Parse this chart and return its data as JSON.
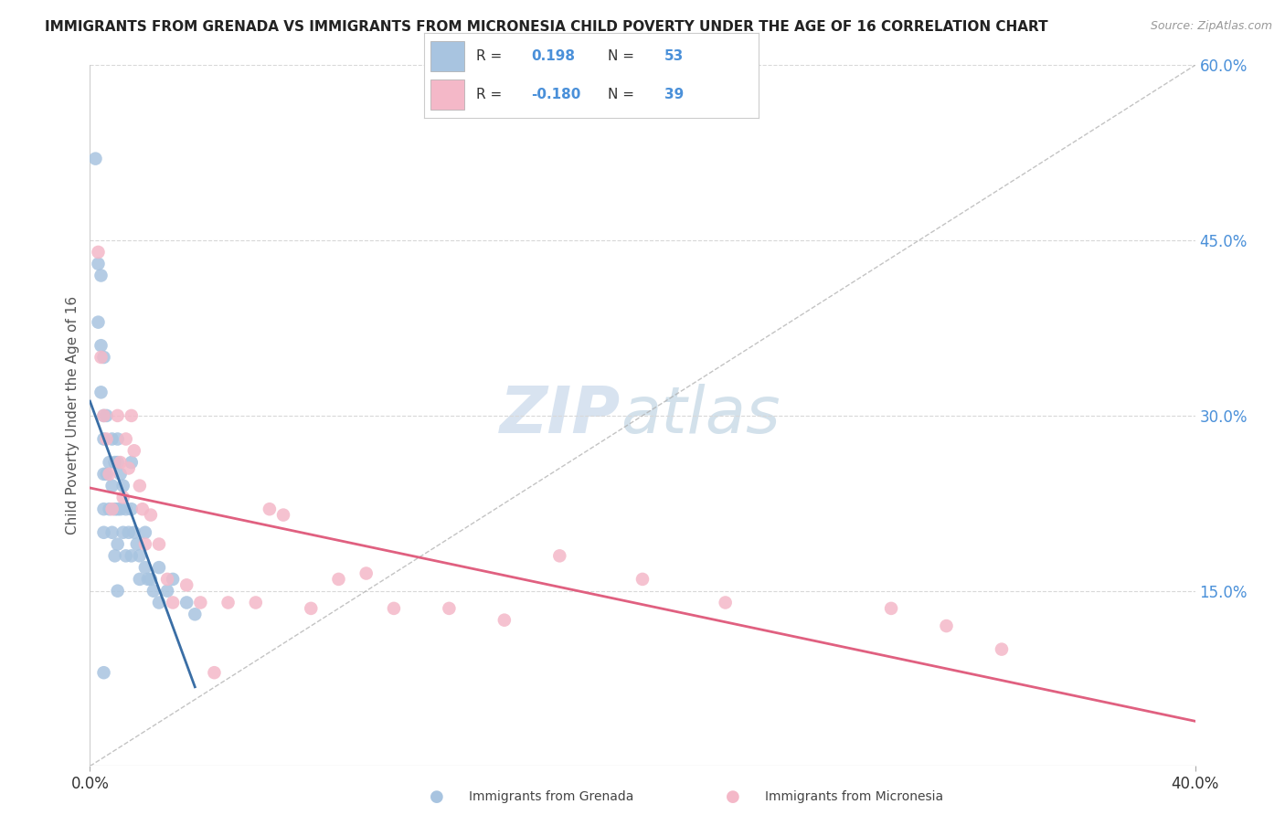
{
  "title": "IMMIGRANTS FROM GRENADA VS IMMIGRANTS FROM MICRONESIA CHILD POVERTY UNDER THE AGE OF 16 CORRELATION CHART",
  "source": "Source: ZipAtlas.com",
  "ylabel": "Child Poverty Under the Age of 16",
  "xlim": [
    0.0,
    0.4
  ],
  "ylim": [
    0.0,
    0.6
  ],
  "grenada_color": "#a8c4e0",
  "micronesia_color": "#f4b8c8",
  "grenada_line_color": "#3a6ea5",
  "micronesia_line_color": "#e06080",
  "watermark_zip": "ZIP",
  "watermark_atlas": "atlas",
  "background_color": "#ffffff",
  "grid_color": "#d8d8d8",
  "grenada_scatter_x": [
    0.002,
    0.003,
    0.003,
    0.004,
    0.004,
    0.004,
    0.005,
    0.005,
    0.005,
    0.005,
    0.005,
    0.005,
    0.005,
    0.006,
    0.006,
    0.007,
    0.007,
    0.008,
    0.008,
    0.008,
    0.009,
    0.009,
    0.009,
    0.01,
    0.01,
    0.01,
    0.01,
    0.01,
    0.011,
    0.011,
    0.012,
    0.012,
    0.013,
    0.013,
    0.014,
    0.015,
    0.015,
    0.015,
    0.016,
    0.017,
    0.018,
    0.018,
    0.02,
    0.02,
    0.021,
    0.022,
    0.023,
    0.025,
    0.025,
    0.028,
    0.03,
    0.035,
    0.038
  ],
  "grenada_scatter_y": [
    0.52,
    0.43,
    0.38,
    0.42,
    0.36,
    0.32,
    0.35,
    0.3,
    0.28,
    0.25,
    0.22,
    0.2,
    0.08,
    0.3,
    0.25,
    0.26,
    0.22,
    0.28,
    0.24,
    0.2,
    0.26,
    0.22,
    0.18,
    0.28,
    0.26,
    0.22,
    0.19,
    0.15,
    0.25,
    0.22,
    0.24,
    0.2,
    0.22,
    0.18,
    0.2,
    0.26,
    0.22,
    0.18,
    0.2,
    0.19,
    0.18,
    0.16,
    0.2,
    0.17,
    0.16,
    0.16,
    0.15,
    0.17,
    0.14,
    0.15,
    0.16,
    0.14,
    0.13
  ],
  "micronesia_scatter_x": [
    0.003,
    0.004,
    0.005,
    0.006,
    0.007,
    0.008,
    0.01,
    0.011,
    0.012,
    0.013,
    0.014,
    0.015,
    0.016,
    0.018,
    0.019,
    0.02,
    0.022,
    0.025,
    0.028,
    0.03,
    0.035,
    0.04,
    0.045,
    0.05,
    0.06,
    0.065,
    0.07,
    0.08,
    0.09,
    0.1,
    0.11,
    0.13,
    0.15,
    0.17,
    0.2,
    0.23,
    0.29,
    0.31,
    0.33
  ],
  "micronesia_scatter_y": [
    0.44,
    0.35,
    0.3,
    0.28,
    0.25,
    0.22,
    0.3,
    0.26,
    0.23,
    0.28,
    0.255,
    0.3,
    0.27,
    0.24,
    0.22,
    0.19,
    0.215,
    0.19,
    0.16,
    0.14,
    0.155,
    0.14,
    0.08,
    0.14,
    0.14,
    0.22,
    0.215,
    0.135,
    0.16,
    0.165,
    0.135,
    0.135,
    0.125,
    0.18,
    0.16,
    0.14,
    0.135,
    0.12,
    0.1
  ],
  "grenada_line_x0": 0.0,
  "grenada_line_x1": 0.04,
  "micronesia_line_x0": 0.0,
  "micronesia_line_x1": 0.4
}
